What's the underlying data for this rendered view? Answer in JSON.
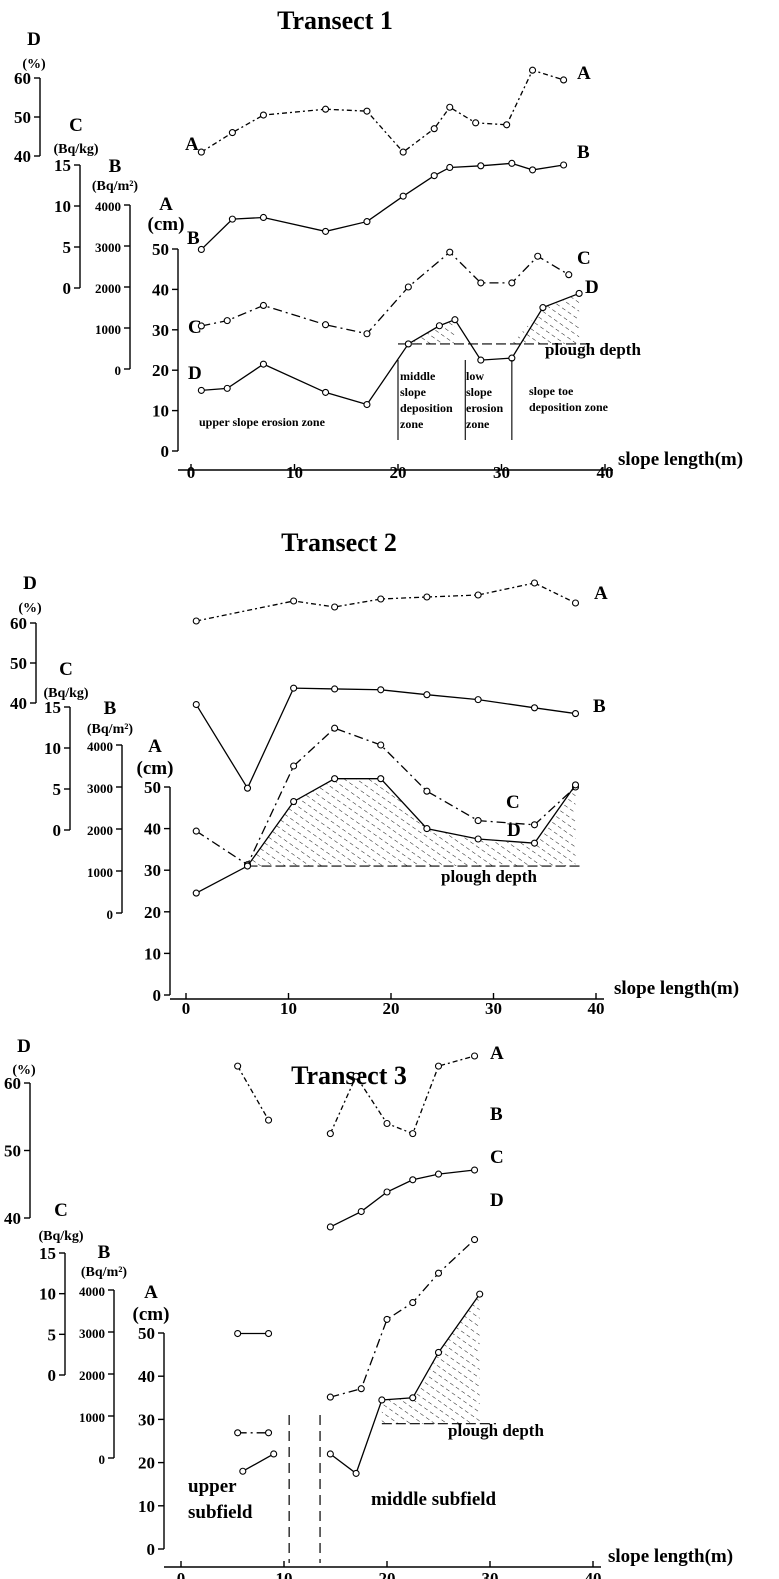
{
  "chart_data": [
    {
      "type": "line",
      "title": "Transect 1",
      "xlabel": "slope length(m)",
      "xlim": [
        0,
        40
      ],
      "x_ticks": [
        "0",
        "10",
        "20",
        "30",
        "40"
      ],
      "axes": {
        "D": {
          "label": "D",
          "unit": "(%)",
          "ticks": [
            "40",
            "50",
            "60"
          ],
          "ylim": [
            40,
            60
          ]
        },
        "C": {
          "label": "C",
          "unit": "(Bq/kg)",
          "ticks": [
            "0",
            "5",
            "10",
            "15"
          ],
          "ylim": [
            0,
            15
          ]
        },
        "B": {
          "label": "B",
          "unit": "(Bq/m²)",
          "ticks": [
            "0",
            "1000",
            "2000",
            "3000",
            "4000"
          ],
          "ylim": [
            0,
            4000
          ]
        },
        "A": {
          "label": "A",
          "unit": "(cm)",
          "ticks": [
            "0",
            "10",
            "20",
            "30",
            "40",
            "50"
          ],
          "ylim": [
            0,
            50
          ]
        }
      },
      "series": [
        {
          "name": "A",
          "axis": "D",
          "style": "dashdot2",
          "x": [
            1,
            4,
            7,
            13,
            17,
            20.5,
            23.5,
            25,
            27.5,
            30.5,
            33,
            36
          ],
          "y": [
            41,
            46,
            50.5,
            52,
            51.5,
            41,
            47,
            52.5,
            48.5,
            48,
            62,
            59.5
          ]
        },
        {
          "name": "B",
          "axis": "C",
          "style": "solid",
          "x": [
            1,
            4,
            7,
            13,
            17,
            20.5,
            23.5,
            25,
            28,
            31,
            33,
            36
          ],
          "y": [
            4.7,
            8.4,
            8.6,
            6.9,
            8.1,
            11.2,
            13.7,
            14.7,
            14.9,
            15.2,
            14.4,
            15
          ]
        },
        {
          "name": "C",
          "axis": "B",
          "style": "dashdot",
          "x": [
            1,
            3.5,
            7,
            13,
            17,
            21,
            25,
            28,
            31,
            33.5,
            36.5
          ],
          "y": [
            1050,
            1180,
            1550,
            1080,
            860,
            2000,
            2850,
            2100,
            2100,
            2750,
            2300
          ]
        },
        {
          "name": "D",
          "axis": "A",
          "style": "solid",
          "x": [
            1,
            3.5,
            7,
            13,
            17,
            21,
            24,
            25.5,
            28,
            31,
            34,
            37.5
          ],
          "y": [
            15,
            15.5,
            21.5,
            14.5,
            11.5,
            26.5,
            31,
            32.5,
            22.5,
            23,
            35.5,
            39
          ]
        }
      ],
      "plough_depth_cm": 26.5,
      "plough_label": "plough depth",
      "deposition_shading": [
        [
          20,
          26
        ],
        [
          31,
          38
        ]
      ],
      "zone_dividers_m": [
        20,
        26.5,
        31
      ],
      "zones": [
        {
          "lines": [
            "upper slope erosion zone"
          ]
        },
        {
          "lines": [
            "middle",
            "slope",
            "deposition",
            "zone"
          ]
        },
        {
          "lines": [
            "low",
            "slope",
            "erosion",
            "zone"
          ]
        },
        {
          "lines": [
            "slope toe",
            "deposition zone"
          ]
        }
      ]
    },
    {
      "type": "line",
      "title": "Transect 2",
      "xlabel": "slope length(m)",
      "xlim": [
        0,
        40
      ],
      "x_ticks": [
        "0",
        "10",
        "20",
        "30",
        "40"
      ],
      "axes": {
        "D": {
          "label": "D",
          "unit": "(%)",
          "ticks": [
            "40",
            "50",
            "60"
          ],
          "ylim": [
            40,
            60
          ]
        },
        "C": {
          "label": "C",
          "unit": "(Bq/kg)",
          "ticks": [
            "0",
            "5",
            "10",
            "15"
          ],
          "ylim": [
            0,
            15
          ]
        },
        "B": {
          "label": "B",
          "unit": "(Bq/m²)",
          "ticks": [
            "0",
            "1000",
            "2000",
            "3000",
            "4000"
          ],
          "ylim": [
            0,
            4000
          ]
        },
        "A": {
          "label": "A",
          "unit": "(cm)",
          "ticks": [
            "0",
            "10",
            "20",
            "30",
            "40",
            "50"
          ],
          "ylim": [
            0,
            50
          ]
        }
      },
      "series": [
        {
          "name": "A",
          "axis": "D",
          "style": "dashdot2",
          "x": [
            1,
            10.5,
            14.5,
            19,
            23.5,
            28.5,
            34,
            38
          ],
          "y": [
            60.5,
            65.5,
            64,
            66,
            66.5,
            67,
            70,
            65
          ]
        },
        {
          "name": "B",
          "axis": "C",
          "style": "solid",
          "x": [
            1,
            6,
            10.5,
            14.5,
            19,
            23.5,
            28.5,
            34,
            38
          ],
          "y": [
            15.3,
            5.1,
            17.3,
            17.2,
            17.1,
            16.5,
            15.9,
            14.9,
            14.2
          ]
        },
        {
          "name": "C",
          "axis": "B",
          "style": "dashdot",
          "x": [
            1,
            6,
            10.5,
            14.5,
            19,
            23.5,
            28.5,
            34,
            38
          ],
          "y": [
            1950,
            1150,
            3500,
            4400,
            4000,
            2900,
            2200,
            2100,
            3000
          ]
        },
        {
          "name": "D",
          "axis": "A",
          "style": "solid",
          "x": [
            1,
            6,
            10.5,
            14.5,
            19,
            23.5,
            28.5,
            34,
            38
          ],
          "y": [
            24.5,
            31,
            46.5,
            52,
            52,
            40,
            37.5,
            36.5,
            50.5
          ]
        }
      ],
      "plough_depth_cm": 31,
      "plough_label": "plough depth",
      "deposition_shading": [
        [
          6,
          38
        ]
      ],
      "zone_dividers_m": [],
      "zones": []
    },
    {
      "type": "line",
      "title": "Transect 3",
      "xlabel": "slope length(m)",
      "xlim": [
        0,
        40
      ],
      "x_ticks": [
        "0",
        "10",
        "20",
        "30",
        "40"
      ],
      "axes": {
        "D": {
          "label": "D",
          "unit": "(%)",
          "ticks": [
            "40",
            "50",
            "60"
          ],
          "ylim": [
            40,
            60
          ]
        },
        "C": {
          "label": "C",
          "unit": "(Bq/kg)",
          "ticks": [
            "0",
            "5",
            "10",
            "15"
          ],
          "ylim": [
            0,
            15
          ]
        },
        "B": {
          "label": "B",
          "unit": "(Bq/m²)",
          "ticks": [
            "0",
            "1000",
            "2000",
            "3000",
            "4000"
          ],
          "ylim": [
            0,
            4000
          ]
        },
        "A": {
          "label": "A",
          "unit": "(cm)",
          "ticks": [
            "0",
            "10",
            "20",
            "30",
            "40",
            "50"
          ],
          "ylim": [
            0,
            50
          ]
        }
      },
      "series": [
        {
          "name": "A",
          "axis": "D",
          "style": "dashdot2",
          "segments": [
            {
              "x": [
                5.5,
                8.5
              ],
              "y": [
                62.5,
                54.5
              ]
            },
            {
              "x": [
                14.5,
                17,
                20,
                22.5,
                25,
                28.5
              ],
              "y": [
                52.5,
                61,
                54,
                52.5,
                62.5,
                64
              ]
            }
          ]
        },
        {
          "name": "B",
          "axis": "C",
          "style": "solid",
          "segments": [
            {
              "x": [
                5.5,
                8.5
              ],
              "y": [
                5.1,
                5.1
              ]
            },
            {
              "x": [
                14.5,
                17.5,
                20,
                22.5,
                25,
                28.5
              ],
              "y": [
                18.2,
                20.1,
                22.5,
                24,
                24.7,
                25.2
              ]
            }
          ]
        },
        {
          "name": "C",
          "axis": "B",
          "style": "dashdot",
          "segments": [
            {
              "x": [
                5.5,
                8.5
              ],
              "y": [
                600,
                600
              ]
            },
            {
              "x": [
                14.5,
                17.5,
                20,
                22.5,
                25,
                28.5
              ],
              "y": [
                1450,
                1650,
                3300,
                3700,
                4400,
                5200
              ]
            }
          ]
        },
        {
          "name": "D",
          "axis": "A",
          "style": "solid",
          "segments": [
            {
              "x": [
                6,
                9
              ],
              "y": [
                18,
                22
              ]
            },
            {
              "x": [
                14.5,
                17,
                19.5,
                22.5,
                25,
                29
              ],
              "y": [
                22,
                17.5,
                34.5,
                35,
                45.5,
                59
              ]
            }
          ]
        }
      ],
      "plough_depth_cm": 29,
      "plough_label": "plough depth",
      "deposition_shading": [
        [
          19.5,
          30
        ]
      ],
      "subfield_dividers_m": [
        10.5,
        13.5
      ],
      "subfields": [
        {
          "lines": [
            "upper",
            "subfield"
          ]
        },
        {
          "lines": [
            "middle subfield"
          ]
        }
      ]
    }
  ]
}
